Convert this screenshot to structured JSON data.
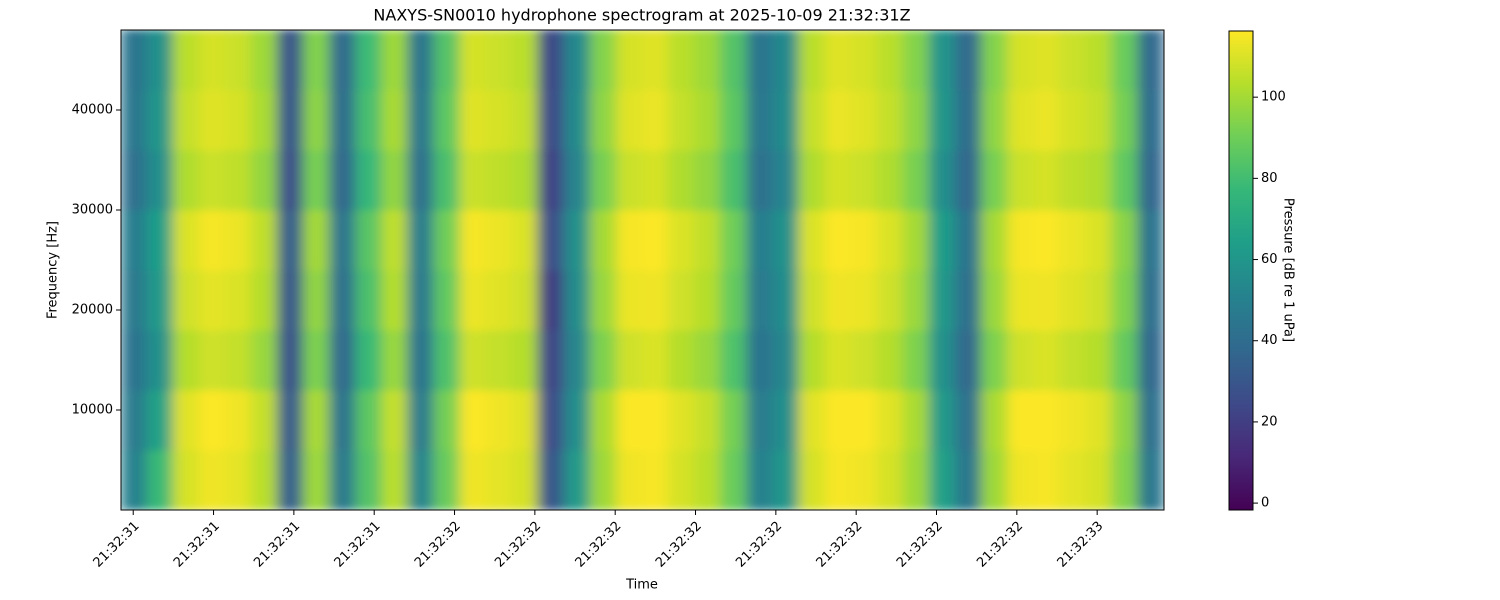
{
  "chart_data": {
    "type": "heatmap",
    "title": "NAXYS-SN0010 hydrophone spectrogram at 2025-10-09 21:32:31Z",
    "x_label": "Time",
    "y_label": "Frequency [Hz]",
    "colorbar_label": "Pressure [dB re 1 uPa]",
    "colormap": "viridis",
    "xlim": [
      31.481,
      33.104
    ],
    "ylim": [
      0,
      48000
    ],
    "clim": [
      -1.7,
      116.3
    ],
    "xticks": [
      {
        "value": 31.5,
        "label": "21:32:31"
      },
      {
        "value": 31.625,
        "label": "21:32:31"
      },
      {
        "value": 31.75,
        "label": "21:32:31"
      },
      {
        "value": 31.875,
        "label": "21:32:31"
      },
      {
        "value": 32.0,
        "label": "21:32:32"
      },
      {
        "value": 32.125,
        "label": "21:32:32"
      },
      {
        "value": 32.25,
        "label": "21:32:32"
      },
      {
        "value": 32.375,
        "label": "21:32:32"
      },
      {
        "value": 32.5,
        "label": "21:32:32"
      },
      {
        "value": 32.625,
        "label": "21:32:32"
      },
      {
        "value": 32.75,
        "label": "21:32:32"
      },
      {
        "value": 32.875,
        "label": "21:32:32"
      },
      {
        "value": 33.0,
        "label": "21:32:33"
      }
    ],
    "yticks": [
      10000,
      20000,
      30000,
      40000
    ],
    "cticks": [
      0,
      20,
      40,
      60,
      80,
      100
    ],
    "z": [
      [
        50,
        47,
        43,
        46,
        48,
        42,
        45,
        44
      ],
      [
        78,
        66,
        58,
        62,
        64,
        57,
        60,
        58
      ],
      [
        109,
        111,
        103,
        108,
        110,
        102,
        106,
        104
      ],
      [
        114,
        116,
        108,
        112,
        115,
        107,
        111,
        109
      ],
      [
        112,
        114,
        106,
        110,
        113,
        105,
        109,
        107
      ],
      [
        104,
        106,
        98,
        103,
        105,
        97,
        101,
        99
      ],
      [
        34,
        32,
        28,
        31,
        33,
        27,
        30,
        29
      ],
      [
        99,
        101,
        93,
        97,
        100,
        92,
        96,
        94
      ],
      [
        46,
        43,
        38,
        41,
        44,
        37,
        40,
        39
      ],
      [
        84,
        86,
        78,
        82,
        85,
        77,
        81,
        79
      ],
      [
        104,
        106,
        98,
        103,
        105,
        97,
        101,
        99
      ],
      [
        52,
        47,
        43,
        46,
        48,
        42,
        45,
        44
      ],
      [
        89,
        91,
        83,
        87,
        90,
        82,
        86,
        84
      ],
      [
        114,
        116,
        108,
        113,
        115,
        107,
        111,
        109
      ],
      [
        112,
        114,
        106,
        111,
        113,
        105,
        109,
        107
      ],
      [
        109,
        111,
        103,
        108,
        110,
        102,
        106,
        104
      ],
      [
        30,
        26,
        23,
        20,
        27,
        22,
        25,
        24
      ],
      [
        62,
        57,
        53,
        56,
        58,
        52,
        55,
        54
      ],
      [
        99,
        101,
        93,
        98,
        100,
        92,
        96,
        94
      ],
      [
        114,
        116,
        108,
        113,
        115,
        107,
        111,
        109
      ],
      [
        115,
        116,
        110,
        114,
        116,
        109,
        113,
        111
      ],
      [
        109,
        111,
        103,
        108,
        110,
        102,
        106,
        104
      ],
      [
        104,
        106,
        98,
        103,
        105,
        97,
        101,
        99
      ],
      [
        89,
        91,
        83,
        88,
        90,
        82,
        86,
        84
      ],
      [
        50,
        47,
        43,
        46,
        48,
        42,
        45,
        44
      ],
      [
        60,
        57,
        53,
        56,
        58,
        52,
        55,
        54
      ],
      [
        109,
        111,
        103,
        108,
        110,
        102,
        106,
        104
      ],
      [
        115,
        116,
        110,
        114,
        116,
        109,
        113,
        111
      ],
      [
        114,
        116,
        108,
        113,
        115,
        107,
        111,
        109
      ],
      [
        109,
        111,
        103,
        108,
        110,
        102,
        106,
        104
      ],
      [
        99,
        101,
        93,
        98,
        100,
        92,
        96,
        94
      ],
      [
        65,
        62,
        58,
        61,
        63,
        57,
        60,
        59
      ],
      [
        45,
        42,
        38,
        41,
        43,
        37,
        40,
        39
      ],
      [
        99,
        101,
        93,
        98,
        100,
        92,
        96,
        94
      ],
      [
        114,
        116,
        108,
        113,
        115,
        107,
        111,
        109
      ],
      [
        115,
        116,
        110,
        114,
        116,
        109,
        113,
        111
      ],
      [
        112,
        114,
        106,
        111,
        113,
        105,
        109,
        107
      ],
      [
        109,
        111,
        103,
        108,
        110,
        102,
        106,
        104
      ],
      [
        94,
        96,
        88,
        93,
        95,
        87,
        91,
        89
      ],
      [
        45,
        42,
        38,
        41,
        43,
        37,
        40,
        39
      ]
    ]
  }
}
